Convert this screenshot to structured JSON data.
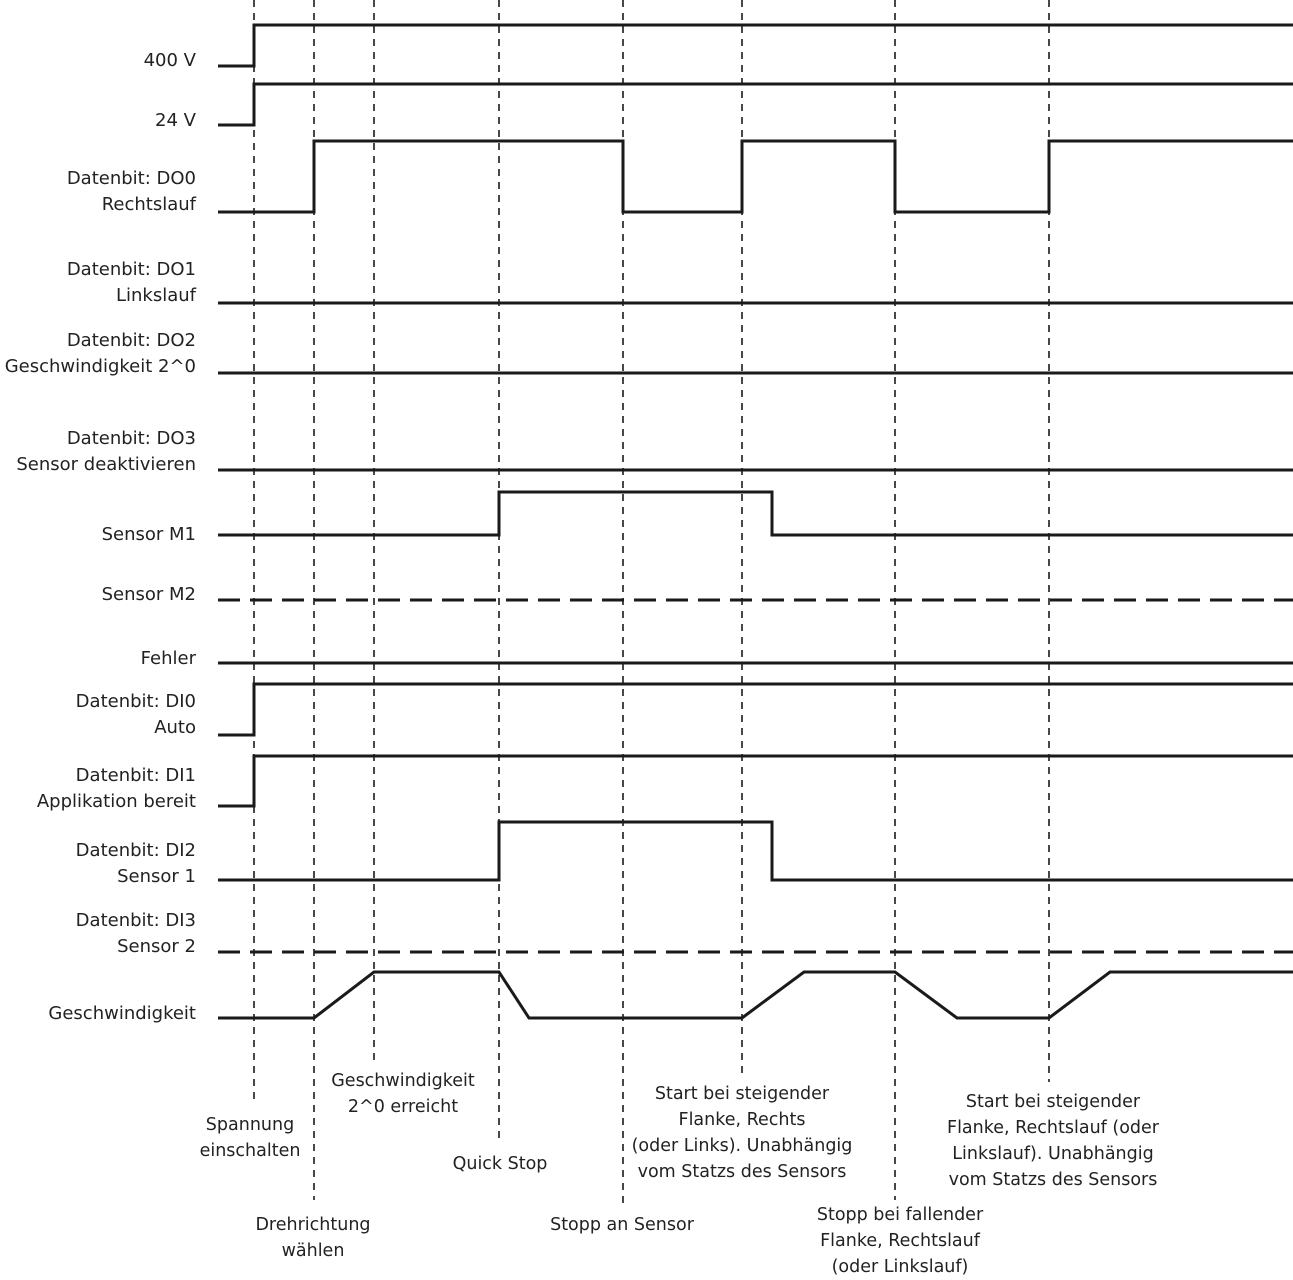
{
  "signals": [
    {
      "id": "v400",
      "label_lines": [
        "400 V"
      ]
    },
    {
      "id": "v24",
      "label_lines": [
        "24 V"
      ]
    },
    {
      "id": "do0",
      "label_lines": [
        "Datenbit: DO0",
        "Rechtslauf"
      ]
    },
    {
      "id": "do1",
      "label_lines": [
        "Datenbit: DO1",
        "Linkslauf"
      ]
    },
    {
      "id": "do2",
      "label_lines": [
        "Datenbit: DO2",
        "Geschwindigkeit 2^0"
      ]
    },
    {
      "id": "do3",
      "label_lines": [
        "Datenbit: DO3",
        "Sensor deaktivieren"
      ]
    },
    {
      "id": "m1",
      "label_lines": [
        "Sensor M1"
      ]
    },
    {
      "id": "m2",
      "label_lines": [
        "Sensor M2"
      ]
    },
    {
      "id": "fehler",
      "label_lines": [
        "Fehler"
      ]
    },
    {
      "id": "di0",
      "label_lines": [
        "Datenbit: DI0",
        "Auto"
      ]
    },
    {
      "id": "di1",
      "label_lines": [
        "Datenbit: DI1",
        "Applikation bereit"
      ]
    },
    {
      "id": "di2",
      "label_lines": [
        "Datenbit: DI2",
        "Sensor 1"
      ]
    },
    {
      "id": "di3",
      "label_lines": [
        "Datenbit: DI3",
        "Sensor 2"
      ]
    },
    {
      "id": "speed",
      "label_lines": [
        "Geschwindigkeit"
      ]
    }
  ],
  "events": [
    {
      "id": "spannung",
      "lines": [
        "Spannung",
        "einschalten"
      ]
    },
    {
      "id": "drehrichtung",
      "lines": [
        "Drehrichtung",
        "wählen"
      ]
    },
    {
      "id": "geschw",
      "lines": [
        "Geschwindigkeit",
        "2^0 erreicht"
      ]
    },
    {
      "id": "quickstop",
      "lines": [
        "Quick Stop"
      ]
    },
    {
      "id": "stopp-sensor",
      "lines": [
        "Stopp an Sensor"
      ]
    },
    {
      "id": "start1",
      "lines": [
        "Start bei steigender",
        "Flanke, Rechts",
        "(oder Links). Unabhängig",
        "vom Statzs des Sensors"
      ]
    },
    {
      "id": "stopp-flanke",
      "lines": [
        "Stopp bei fallender",
        "Flanke, Rechtslauf",
        "(oder Linkslauf)"
      ]
    },
    {
      "id": "start2",
      "lines": [
        "Start bei steigender",
        "Flanke, Rechtslauf (oder",
        "Linkslauf). Unabhängig",
        "vom Statzs des Sensors"
      ]
    }
  ],
  "colors": {
    "line": "#1a1a1a",
    "text": "#222222"
  }
}
